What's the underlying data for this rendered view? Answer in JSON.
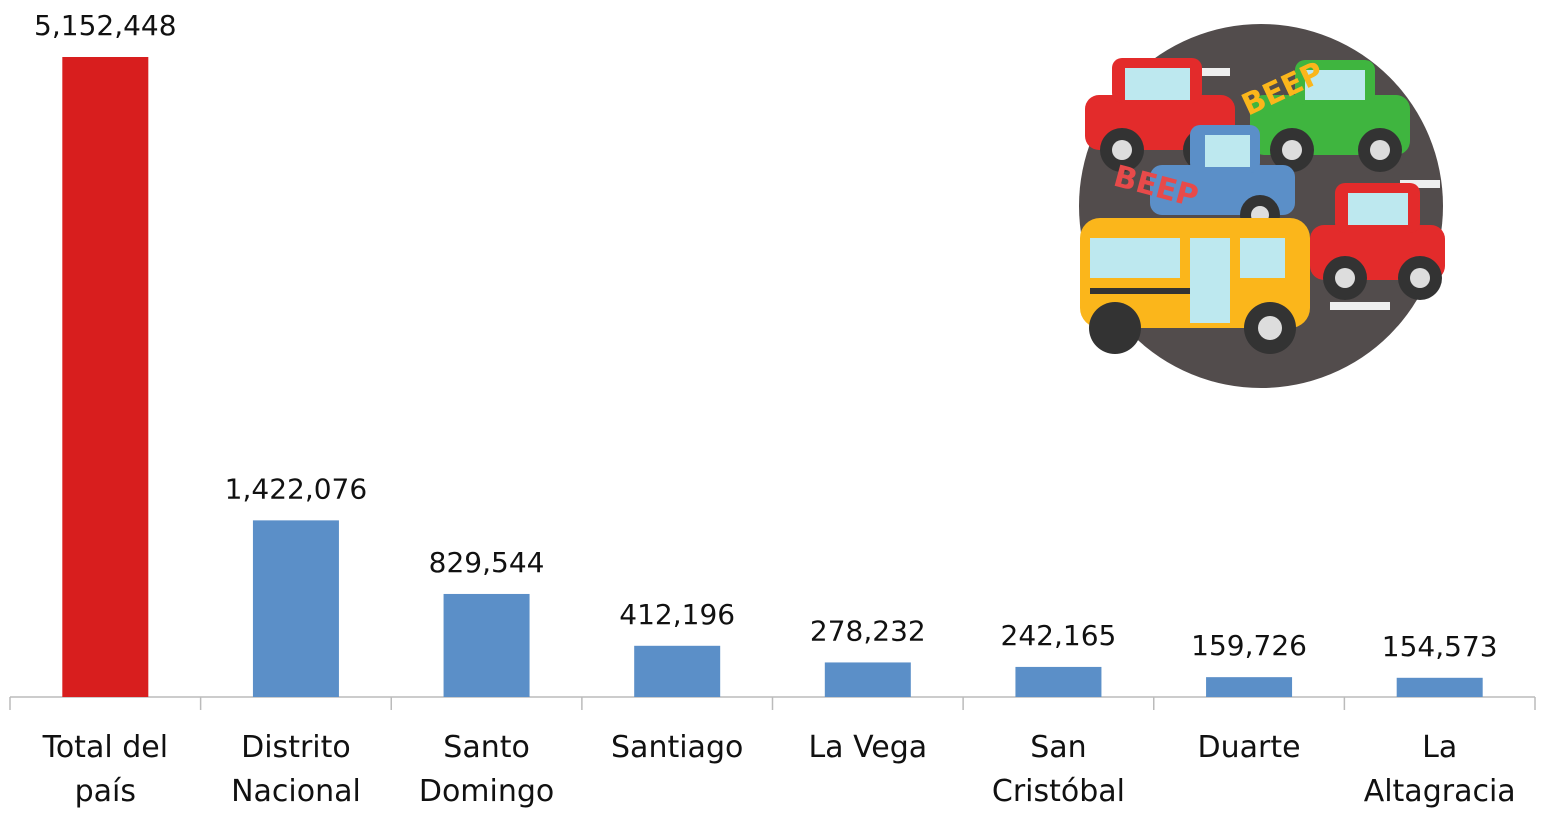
{
  "chart_data": {
    "type": "bar",
    "categories": [
      "Total del país",
      "Distrito Nacional",
      "Santo Domingo",
      "Santiago",
      "La Vega",
      "San Cristóbal",
      "Duarte",
      "La Altagracia"
    ],
    "values": [
      5152448,
      1422076,
      829544,
      412196,
      278232,
      242165,
      159726,
      154573
    ],
    "value_labels": [
      "5,152,448",
      "1,422,076",
      "829,544",
      "412,196",
      "278,232",
      "242,165",
      "159,726",
      "154,573"
    ],
    "colors": [
      "#d81e1e",
      "#5b8fc8",
      "#5b8fc8",
      "#5b8fc8",
      "#5b8fc8",
      "#5b8fc8",
      "#5b8fc8",
      "#5b8fc8"
    ]
  },
  "illustration": {
    "texts": [
      "BEEP",
      "BEEP"
    ]
  }
}
